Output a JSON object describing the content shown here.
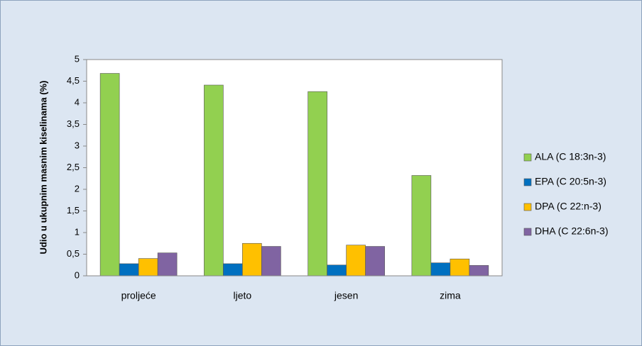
{
  "chart_data": {
    "type": "bar",
    "y_label": "Udio u ukupnim masnim kiselinama (%)",
    "categories": [
      "proljeće",
      "ljeto",
      "jesen",
      "zima"
    ],
    "series": [
      {
        "name": "ALA (C 18:3n-3)",
        "color": "#92d050",
        "values": [
          4.68,
          4.41,
          4.26,
          2.32
        ]
      },
      {
        "name": "EPA (C 20:5n-3)",
        "color": "#0070c0",
        "values": [
          0.28,
          0.28,
          0.25,
          0.3
        ]
      },
      {
        "name": "DPA (C 22:n-3)",
        "color": "#ffc000",
        "values": [
          0.4,
          0.75,
          0.71,
          0.39
        ]
      },
      {
        "name": "DHA (C 22:6n-3)",
        "color": "#8064a2",
        "values": [
          0.53,
          0.68,
          0.68,
          0.24
        ]
      }
    ],
    "ylim": [
      0,
      5
    ],
    "yticks": [
      0,
      {
        "value": 0.5,
        "label": "0,5"
      },
      1,
      {
        "value": 1.5,
        "label": "1,5"
      },
      2,
      {
        "value": 2.5,
        "label": "2,5"
      },
      3,
      {
        "value": 3.5,
        "label": "3,5"
      },
      4,
      {
        "value": 4.5,
        "label": "4,5"
      },
      5
    ],
    "grid": false,
    "legend": "right"
  }
}
